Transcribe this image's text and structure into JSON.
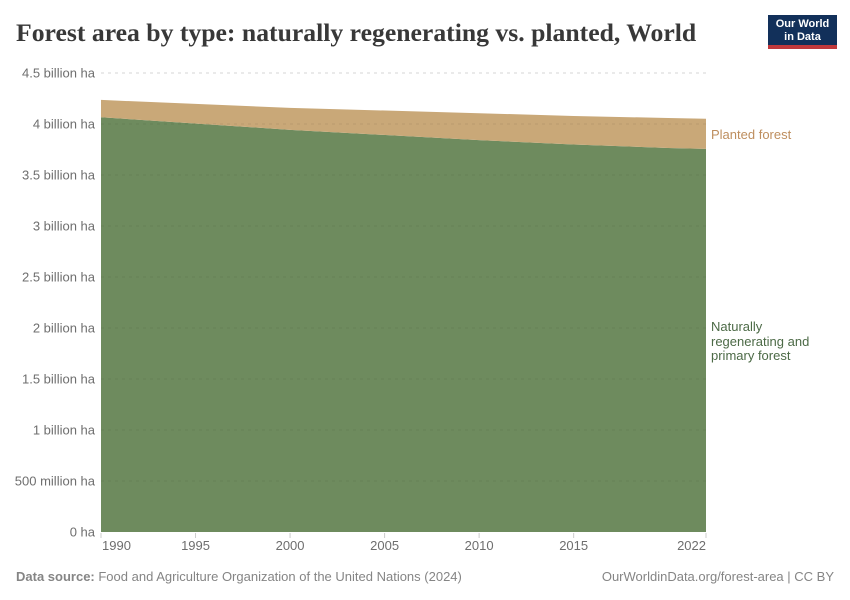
{
  "title": "Forest area by type: naturally regenerating vs. planted, World",
  "logo": {
    "line1": "Our World",
    "line2": "in Data"
  },
  "colors": {
    "natural_fill": "#6E8B5E",
    "planted_fill": "#C9A878",
    "natural_label": "#4C6A46",
    "planted_label": "#BE8E5E",
    "axis_text": "#6e6e6e",
    "gridline": "#d5d5d5",
    "title": "#383838",
    "footer": "#858585",
    "logo_bg": "#12305A",
    "logo_accent": "#C0393C"
  },
  "chart_data": {
    "type": "area",
    "stacked": true,
    "title": "Forest area by type: naturally regenerating vs. planted, World",
    "x": [
      1990,
      2000,
      2010,
      2015,
      2020,
      2022
    ],
    "series": [
      {
        "name": "Naturally regenerating and primary forest",
        "values": [
          4.066,
          3.943,
          3.842,
          3.799,
          3.765,
          3.756
        ],
        "color": "#6E8B5E"
      },
      {
        "name": "Planted forest",
        "values": [
          0.17,
          0.215,
          0.264,
          0.279,
          0.294,
          0.296
        ],
        "color": "#C9A878"
      }
    ],
    "unit": "billion ha",
    "xlim": [
      1990,
      2022
    ],
    "ylim": [
      0,
      4.5
    ],
    "grid": "dashed",
    "legend_position": "right-of-plot",
    "y_ticks": [
      {
        "value": 0,
        "label": "0 ha"
      },
      {
        "value": 0.5,
        "label": "500 million ha"
      },
      {
        "value": 1,
        "label": "1 billion ha"
      },
      {
        "value": 1.5,
        "label": "1.5 billion ha"
      },
      {
        "value": 2,
        "label": "2 billion ha"
      },
      {
        "value": 2.5,
        "label": "2.5 billion ha"
      },
      {
        "value": 3,
        "label": "3 billion ha"
      },
      {
        "value": 3.5,
        "label": "3.5 billion ha"
      },
      {
        "value": 4,
        "label": "4 billion ha"
      },
      {
        "value": 4.5,
        "label": "4.5 billion ha"
      }
    ],
    "x_ticks": [
      1990,
      1995,
      2000,
      2005,
      2010,
      2015,
      2022
    ]
  },
  "labels": {
    "planted": "Planted forest",
    "natural": "Naturally regenerating and primary forest"
  },
  "footer": {
    "source_label": "Data source:",
    "source": " Food and Agriculture Organization of the United Nations (2024)",
    "link": "OurWorldinData.org/forest-area | CC BY"
  }
}
